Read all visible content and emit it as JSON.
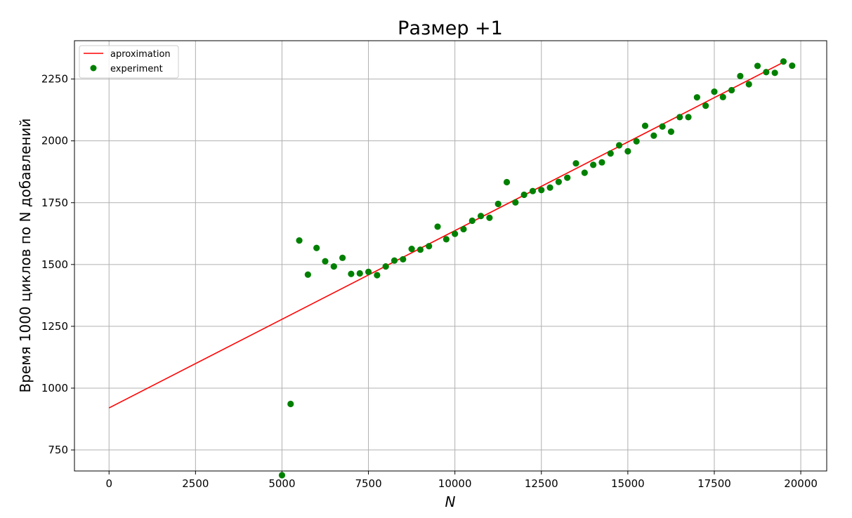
{
  "colors": {
    "line": "#ff0000",
    "points": "#008000",
    "grid": "#b0b0b0"
  },
  "chart_data": {
    "type": "scatter",
    "title": "Размер +1",
    "xlabel": "N",
    "ylabel": "Время 1000 циклов по N добавлений",
    "xlim": [
      -1000,
      20750
    ],
    "ylim": [
      665,
      2405
    ],
    "xticks": [
      0,
      2500,
      5000,
      7500,
      10000,
      12500,
      15000,
      17500,
      20000
    ],
    "yticks": [
      750,
      1000,
      1250,
      1500,
      1750,
      2000,
      2250
    ],
    "grid": true,
    "legend_position": "top-left",
    "series": [
      {
        "name": "aproximation",
        "kind": "line",
        "x": [
          0,
          19500
        ],
        "y": [
          920,
          2318
        ]
      },
      {
        "name": "experiment",
        "kind": "scatter",
        "x": [
          5000,
          5250,
          5500,
          5750,
          6000,
          6250,
          6500,
          6750,
          7000,
          7250,
          7500,
          7750,
          8000,
          8250,
          8500,
          8750,
          9000,
          9250,
          9500,
          9750,
          10000,
          10250,
          10500,
          10750,
          11000,
          11250,
          11500,
          11750,
          12000,
          12250,
          12500,
          12750,
          13000,
          13250,
          13500,
          13750,
          14000,
          14250,
          14500,
          14750,
          15000,
          15250,
          15500,
          15750,
          16000,
          16250,
          16500,
          16750,
          17000,
          17250,
          17500,
          17750,
          18000,
          18250,
          18500,
          18750,
          19000,
          19250,
          19500,
          19750
        ],
        "y": [
          648,
          936,
          1597,
          1459,
          1567,
          1513,
          1492,
          1527,
          1462,
          1464,
          1470,
          1457,
          1492,
          1516,
          1521,
          1563,
          1560,
          1574,
          1653,
          1602,
          1624,
          1643,
          1677,
          1696,
          1689,
          1745,
          1833,
          1751,
          1782,
          1797,
          1801,
          1811,
          1834,
          1851,
          1909,
          1871,
          1903,
          1913,
          1949,
          1982,
          1958,
          1998,
          2061,
          2021,
          2058,
          2037,
          2096,
          2096,
          2176,
          2142,
          2199,
          2177,
          2205,
          2262,
          2229,
          2303,
          2278,
          2275,
          2321,
          2304
        ]
      }
    ]
  }
}
